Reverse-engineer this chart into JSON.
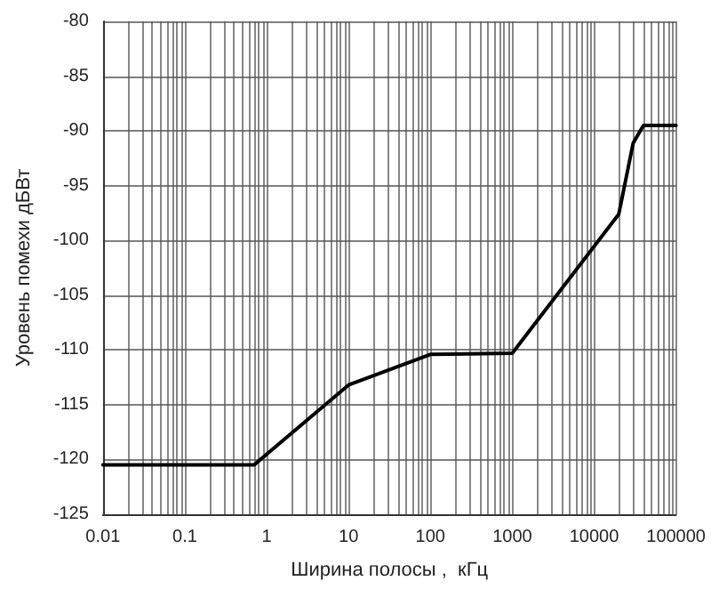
{
  "chart_data": {
    "type": "line",
    "xlabel": "Ширина полосы ,  кГц",
    "ylabel": "Уровень помехи дБВт",
    "x": [
      0.01,
      0.7,
      10,
      100,
      1000,
      20000,
      30000,
      40000,
      100000
    ],
    "series": [
      {
        "color": "#000000",
        "values": [
          -120.5,
          -120.5,
          -113.2,
          -110.4,
          -110.3,
          -97.6,
          -91.1,
          -89.5,
          -89.5
        ]
      }
    ],
    "log": "x",
    "xlim": [
      0.01,
      100000
    ],
    "ylim": [
      -125,
      -80
    ],
    "xticks": [
      0.01,
      {
        "value": 0.02,
        "label": null
      },
      {
        "value": 0.03,
        "label": null
      },
      {
        "value": 0.04,
        "label": null
      },
      {
        "value": 0.05,
        "label": null
      },
      {
        "value": 0.06,
        "label": null
      },
      {
        "value": 0.07,
        "label": null
      },
      {
        "value": 0.08,
        "label": null
      },
      {
        "value": 0.09,
        "label": null
      },
      0.1,
      {
        "value": 0.2,
        "label": null
      },
      {
        "value": 0.3,
        "label": null
      },
      {
        "value": 0.4,
        "label": null
      },
      {
        "value": 0.5,
        "label": null
      },
      {
        "value": 0.6,
        "label": null
      },
      {
        "value": 0.7,
        "label": null
      },
      {
        "value": 0.8,
        "label": null
      },
      {
        "value": 0.9,
        "label": null
      },
      1,
      {
        "value": 2,
        "label": null
      },
      {
        "value": 3,
        "label": null
      },
      {
        "value": 4,
        "label": null
      },
      {
        "value": 5,
        "label": null
      },
      {
        "value": 6,
        "label": null
      },
      {
        "value": 7,
        "label": null
      },
      {
        "value": 8,
        "label": null
      },
      {
        "value": 9,
        "label": null
      },
      10,
      {
        "value": 20,
        "label": null
      },
      {
        "value": 30,
        "label": null
      },
      {
        "value": 40,
        "label": null
      },
      {
        "value": 50,
        "label": null
      },
      {
        "value": 60,
        "label": null
      },
      {
        "value": 70,
        "label": null
      },
      {
        "value": 80,
        "label": null
      },
      {
        "value": 90,
        "label": null
      },
      100,
      {
        "value": 200,
        "label": null
      },
      {
        "value": 300,
        "label": null
      },
      {
        "value": 400,
        "label": null
      },
      {
        "value": 500,
        "label": null
      },
      {
        "value": 600,
        "label": null
      },
      {
        "value": 700,
        "label": null
      },
      {
        "value": 800,
        "label": null
      },
      {
        "value": 900,
        "label": null
      },
      1000,
      {
        "value": 2000,
        "label": null
      },
      {
        "value": 3000,
        "label": null
      },
      {
        "value": 4000,
        "label": null
      },
      {
        "value": 5000,
        "label": null
      },
      {
        "value": 6000,
        "label": null
      },
      {
        "value": 7000,
        "label": null
      },
      {
        "value": 8000,
        "label": null
      },
      {
        "value": 9000,
        "label": null
      },
      10000,
      {
        "value": 20000,
        "label": null
      },
      {
        "value": 30000,
        "label": null
      },
      {
        "value": 40000,
        "label": null
      },
      {
        "value": 50000,
        "label": null
      },
      {
        "value": 60000,
        "label": null
      },
      {
        "value": 70000,
        "label": null
      },
      {
        "value": 80000,
        "label": null
      },
      {
        "value": 90000,
        "label": null
      },
      100000
    ],
    "yticks": [
      -125,
      -120,
      -115,
      -110,
      -105,
      -100,
      -95,
      -90,
      -85,
      -80
    ],
    "grid": true,
    "marker": "none",
    "line_style": "solid"
  }
}
